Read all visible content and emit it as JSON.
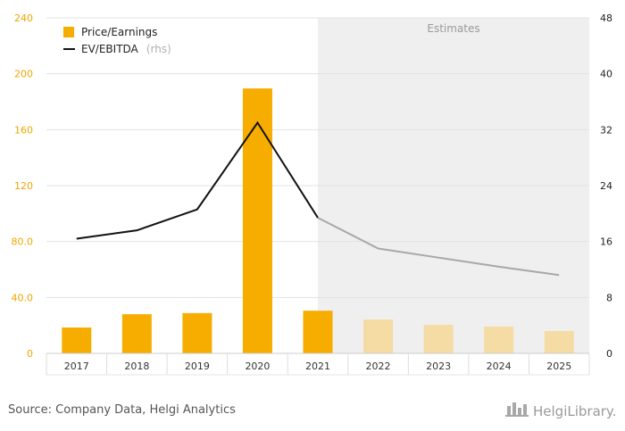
{
  "chart_data": {
    "type": "bar",
    "categories": [
      "2017",
      "2018",
      "2019",
      "2020",
      "2021",
      "2022",
      "2023",
      "2024",
      "2025"
    ],
    "series": [
      {
        "name": "Price/Earnings",
        "axis": "left",
        "type": "bar",
        "values": [
          18.5,
          28.0,
          28.8,
          189.5,
          30.5,
          24.2,
          20.4,
          19.2,
          16.0
        ],
        "estimate_from": "2022",
        "color": "#f7ad00",
        "estimate_color": "#f5dba4"
      },
      {
        "name": "EV/EBITDA",
        "name_suffix": "(rhs)",
        "axis": "right",
        "type": "line",
        "values": [
          16.4,
          17.6,
          20.6,
          33.0,
          19.4,
          15.0,
          13.7,
          12.4,
          11.2
        ],
        "color": "#111111",
        "estimate_color": "#a8a8a8"
      }
    ],
    "y_left": {
      "min": 0,
      "max": 240,
      "ticks": [
        "0",
        "40.0",
        "80.0",
        "120",
        "160",
        "200",
        "240"
      ]
    },
    "y_right": {
      "min": 0,
      "max": 48,
      "ticks": [
        "0",
        "8",
        "16",
        "24",
        "32",
        "40",
        "48"
      ]
    },
    "estimates_label": "Estimates",
    "grid": true,
    "legend": "top-left"
  },
  "source": "Source: Company Data, Helgi Analytics",
  "brand": "HelgiLibrary."
}
